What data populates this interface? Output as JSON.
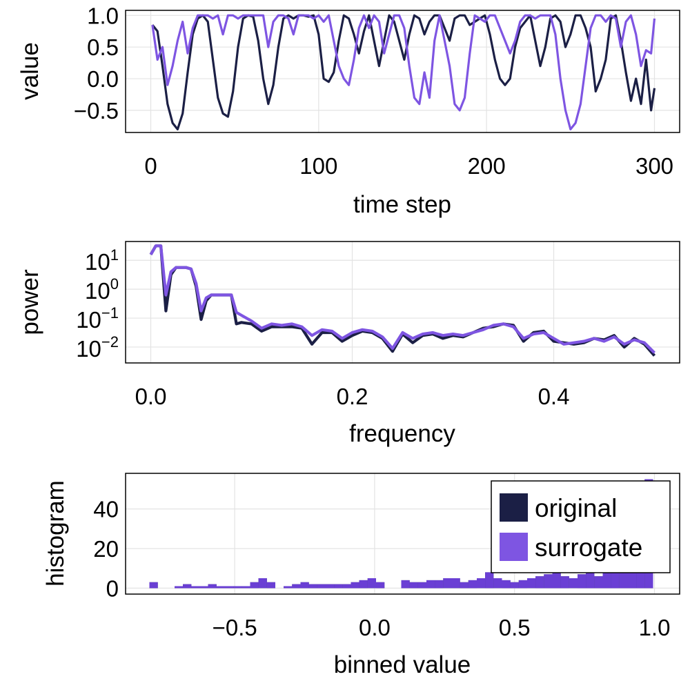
{
  "colors": {
    "original": "#1b1f45",
    "surrogate": "#7e55e2",
    "overlap": "#6a3fd4"
  },
  "legend": {
    "original": "original",
    "surrogate": "surrogate"
  },
  "chart_data": [
    {
      "type": "line",
      "name": "time-series",
      "xlabel": "time step",
      "ylabel": "value",
      "xlim": [
        -15,
        315
      ],
      "ylim": [
        -0.85,
        1.08
      ],
      "xticks": [
        0,
        100,
        200,
        300
      ],
      "xtick_labels": [
        "0",
        "100",
        "200",
        "300"
      ],
      "yticks": [
        -0.5,
        0.0,
        0.5,
        1.0
      ],
      "ytick_labels": [
        "−0.5",
        "0.0",
        "0.5",
        "1.0"
      ],
      "series": [
        {
          "name": "original",
          "x": [
            1,
            4,
            7,
            10,
            13,
            16,
            19,
            22,
            25,
            28,
            31,
            34,
            37,
            40,
            43,
            46,
            49,
            52,
            55,
            58,
            61,
            64,
            67,
            70,
            73,
            76,
            79,
            82,
            85,
            88,
            91,
            94,
            97,
            100,
            103,
            106,
            109,
            112,
            115,
            118,
            121,
            124,
            127,
            130,
            133,
            136,
            139,
            142,
            145,
            148,
            151,
            154,
            157,
            160,
            163,
            166,
            169,
            172,
            175,
            178,
            181,
            184,
            187,
            190,
            193,
            196,
            199,
            202,
            205,
            208,
            211,
            214,
            217,
            220,
            223,
            226,
            229,
            232,
            235,
            238,
            241,
            244,
            247,
            250,
            253,
            256,
            259,
            262,
            265,
            268,
            271,
            274,
            277,
            280,
            283,
            286,
            289,
            292,
            295,
            298,
            300
          ],
          "y": [
            0.85,
            0.75,
            0.2,
            -0.4,
            -0.7,
            -0.8,
            -0.55,
            0.1,
            0.7,
            0.95,
            1.0,
            0.9,
            0.3,
            -0.3,
            -0.55,
            -0.6,
            -0.2,
            0.5,
            0.95,
            1.0,
            0.98,
            0.6,
            0.0,
            -0.4,
            -0.1,
            0.5,
            0.95,
            1.0,
            0.95,
            1.0,
            1.0,
            0.98,
            1.0,
            0.7,
            0.0,
            -0.05,
            0.1,
            0.6,
            1.0,
            0.95,
            0.7,
            0.4,
            0.75,
            1.0,
            0.6,
            0.2,
            0.6,
            1.0,
            0.9,
            0.6,
            0.3,
            0.7,
            1.0,
            0.95,
            0.7,
            0.9,
            1.0,
            1.0,
            0.8,
            0.6,
            0.95,
            1.0,
            1.0,
            0.85,
            0.9,
            0.95,
            1.0,
            0.7,
            0.3,
            0.0,
            -0.1,
            0.0,
            0.5,
            0.8,
            0.9,
            1.0,
            0.6,
            0.2,
            0.5,
            0.95,
            1.0,
            0.9,
            0.5,
            0.7,
            1.0,
            1.0,
            0.8,
            0.5,
            -0.2,
            0.0,
            0.3,
            0.95,
            1.0,
            0.6,
            0.1,
            -0.35,
            0.0,
            -0.4,
            0.3,
            -0.5,
            -0.15
          ]
        },
        {
          "name": "surrogate",
          "x": [
            1,
            4,
            7,
            10,
            13,
            16,
            19,
            22,
            25,
            28,
            31,
            34,
            37,
            40,
            43,
            46,
            49,
            52,
            55,
            58,
            61,
            64,
            67,
            70,
            73,
            76,
            79,
            82,
            85,
            88,
            91,
            94,
            97,
            100,
            103,
            106,
            109,
            112,
            115,
            118,
            121,
            124,
            127,
            130,
            133,
            136,
            139,
            142,
            145,
            148,
            151,
            154,
            157,
            160,
            163,
            166,
            169,
            172,
            175,
            178,
            181,
            184,
            187,
            190,
            193,
            196,
            199,
            202,
            205,
            208,
            211,
            214,
            217,
            220,
            223,
            226,
            229,
            232,
            235,
            238,
            241,
            244,
            247,
            250,
            253,
            256,
            259,
            262,
            265,
            268,
            271,
            274,
            277,
            280,
            283,
            286,
            289,
            292,
            295,
            298,
            300
          ],
          "y": [
            0.85,
            0.3,
            0.5,
            -0.1,
            0.2,
            0.6,
            0.9,
            0.4,
            0.8,
            1.0,
            1.0,
            1.0,
            0.95,
            1.0,
            0.7,
            1.0,
            1.0,
            0.95,
            1.0,
            1.0,
            1.0,
            1.0,
            1.0,
            0.5,
            0.9,
            1.0,
            1.0,
            0.95,
            0.7,
            1.0,
            1.0,
            1.0,
            0.95,
            1.0,
            0.9,
            1.0,
            0.6,
            0.2,
            0.0,
            -0.1,
            0.3,
            0.8,
            1.0,
            0.8,
            1.0,
            0.9,
            0.4,
            0.7,
            1.0,
            1.0,
            0.8,
            0.2,
            -0.3,
            -0.4,
            0.1,
            -0.3,
            0.6,
            1.0,
            0.6,
            0.2,
            -0.4,
            -0.5,
            -0.3,
            0.4,
            1.0,
            0.95,
            0.9,
            1.0,
            1.0,
            0.8,
            0.6,
            0.4,
            0.6,
            0.9,
            1.0,
            1.0,
            0.95,
            1.0,
            1.0,
            1.0,
            0.7,
            0.0,
            -0.5,
            -0.8,
            -0.7,
            -0.4,
            0.2,
            0.8,
            1.0,
            1.0,
            0.9,
            1.0,
            0.95,
            0.5,
            0.9,
            1.0,
            0.7,
            0.2,
            0.45,
            0.4,
            0.95
          ]
        }
      ]
    },
    {
      "type": "line",
      "name": "power-spectrum",
      "xlabel": "frequency",
      "ylabel": "power",
      "yscale": "log10",
      "xlim": [
        -0.025,
        0.525
      ],
      "ylim_log10": [
        -2.55,
        1.65
      ],
      "xticks": [
        0.0,
        0.2,
        0.4
      ],
      "xtick_labels": [
        "0.0",
        "0.2",
        "0.4"
      ],
      "yticks_log10": [
        1,
        0,
        -1,
        -2
      ],
      "ytick_bases": [
        "10",
        "10",
        "10",
        "10"
      ],
      "ytick_exponents": [
        "1",
        "0",
        "−1",
        "−2"
      ],
      "series": [
        {
          "name": "original",
          "x": [
            0.0,
            0.005,
            0.01,
            0.015,
            0.02,
            0.025,
            0.03,
            0.035,
            0.04,
            0.045,
            0.05,
            0.055,
            0.06,
            0.065,
            0.07,
            0.075,
            0.08,
            0.085,
            0.09,
            0.1,
            0.11,
            0.12,
            0.13,
            0.14,
            0.15,
            0.16,
            0.17,
            0.18,
            0.19,
            0.2,
            0.21,
            0.22,
            0.23,
            0.24,
            0.25,
            0.26,
            0.27,
            0.28,
            0.29,
            0.3,
            0.31,
            0.32,
            0.33,
            0.34,
            0.35,
            0.36,
            0.37,
            0.38,
            0.39,
            0.4,
            0.41,
            0.42,
            0.43,
            0.44,
            0.45,
            0.46,
            0.47,
            0.48,
            0.49,
            0.5
          ],
          "y_log10": [
            1.2,
            1.5,
            1.5,
            -0.75,
            0.5,
            0.75,
            0.75,
            0.75,
            0.7,
            0.1,
            -1.05,
            -0.4,
            -0.2,
            -0.2,
            -0.2,
            -0.2,
            -0.2,
            -1.2,
            -1.15,
            -1.2,
            -1.45,
            -1.3,
            -1.3,
            -1.3,
            -1.35,
            -1.9,
            -1.5,
            -1.5,
            -1.8,
            -1.6,
            -1.45,
            -1.5,
            -1.7,
            -2.15,
            -1.55,
            -1.85,
            -1.6,
            -1.55,
            -1.7,
            -1.6,
            -1.65,
            -1.5,
            -1.35,
            -1.3,
            -1.2,
            -1.25,
            -1.8,
            -1.5,
            -1.45,
            -1.8,
            -1.85,
            -1.9,
            -1.85,
            -1.7,
            -1.75,
            -1.6,
            -2.0,
            -1.7,
            -1.9,
            -2.3
          ]
        },
        {
          "name": "surrogate",
          "x": [
            0.0,
            0.005,
            0.01,
            0.015,
            0.02,
            0.025,
            0.03,
            0.035,
            0.04,
            0.045,
            0.05,
            0.055,
            0.06,
            0.065,
            0.07,
            0.075,
            0.08,
            0.085,
            0.09,
            0.1,
            0.11,
            0.12,
            0.13,
            0.14,
            0.15,
            0.16,
            0.17,
            0.18,
            0.19,
            0.2,
            0.21,
            0.22,
            0.23,
            0.24,
            0.25,
            0.26,
            0.27,
            0.28,
            0.29,
            0.3,
            0.31,
            0.32,
            0.33,
            0.34,
            0.35,
            0.36,
            0.37,
            0.38,
            0.39,
            0.4,
            0.41,
            0.42,
            0.43,
            0.44,
            0.45,
            0.46,
            0.47,
            0.48,
            0.49,
            0.5
          ],
          "y_log10": [
            1.2,
            1.5,
            1.5,
            -0.2,
            0.6,
            0.75,
            0.75,
            0.75,
            0.7,
            0.2,
            -0.75,
            -0.3,
            -0.2,
            -0.2,
            -0.2,
            -0.2,
            -0.2,
            -0.8,
            -0.9,
            -1.1,
            -1.35,
            -1.2,
            -1.25,
            -1.2,
            -1.3,
            -1.6,
            -1.4,
            -1.45,
            -1.7,
            -1.5,
            -1.4,
            -1.45,
            -1.65,
            -2.05,
            -1.5,
            -1.7,
            -1.55,
            -1.5,
            -1.6,
            -1.55,
            -1.6,
            -1.5,
            -1.4,
            -1.25,
            -1.2,
            -1.3,
            -1.7,
            -1.55,
            -1.5,
            -1.7,
            -1.9,
            -1.85,
            -1.8,
            -1.7,
            -1.8,
            -1.65,
            -1.9,
            -1.75,
            -1.85,
            -2.2
          ]
        }
      ]
    },
    {
      "type": "bar",
      "name": "histogram",
      "xlabel": "binned value",
      "ylabel": "histogram",
      "xlim": [
        -0.89,
        1.09
      ],
      "ylim": [
        -3,
        58
      ],
      "xticks": [
        -0.5,
        0.0,
        0.5,
        1.0
      ],
      "xtick_labels": [
        "−0.5",
        "0.0",
        "0.5",
        "1.0"
      ],
      "yticks": [
        0,
        20,
        40
      ],
      "ytick_labels": [
        "0",
        "20",
        "40"
      ],
      "bin_width": 0.03,
      "bin_centers": [
        -0.79,
        -0.76,
        -0.73,
        -0.7,
        -0.67,
        -0.64,
        -0.61,
        -0.58,
        -0.55,
        -0.52,
        -0.49,
        -0.46,
        -0.43,
        -0.4,
        -0.37,
        -0.34,
        -0.31,
        -0.28,
        -0.25,
        -0.22,
        -0.19,
        -0.16,
        -0.13,
        -0.1,
        -0.07,
        -0.04,
        -0.01,
        0.02,
        0.05,
        0.08,
        0.11,
        0.14,
        0.17,
        0.2,
        0.23,
        0.26,
        0.29,
        0.32,
        0.35,
        0.38,
        0.41,
        0.44,
        0.47,
        0.5,
        0.53,
        0.56,
        0.59,
        0.62,
        0.65,
        0.68,
        0.71,
        0.74,
        0.77,
        0.8,
        0.83,
        0.86,
        0.89,
        0.92,
        0.95,
        0.98
      ],
      "series": [
        {
          "name": "original",
          "values": [
            3,
            0,
            0,
            1,
            2,
            1,
            1,
            2,
            1,
            1,
            1,
            1,
            3,
            5,
            3,
            0,
            1,
            2,
            3,
            2,
            2,
            2,
            2,
            2,
            3,
            4,
            5,
            3,
            0,
            0,
            4,
            3,
            3,
            4,
            4,
            5,
            5,
            3,
            4,
            5,
            8,
            5,
            4,
            3,
            4,
            5,
            6,
            7,
            9,
            6,
            5,
            7,
            8,
            6,
            9,
            8,
            10,
            12,
            15,
            55
          ]
        },
        {
          "name": "surrogate",
          "values": [
            3,
            0,
            0,
            1,
            2,
            1,
            1,
            2,
            1,
            1,
            1,
            1,
            3,
            5,
            3,
            0,
            1,
            2,
            3,
            2,
            2,
            2,
            2,
            2,
            3,
            4,
            5,
            3,
            0,
            0,
            4,
            3,
            3,
            4,
            4,
            5,
            5,
            3,
            4,
            5,
            8,
            5,
            4,
            3,
            4,
            5,
            6,
            7,
            9,
            6,
            5,
            7,
            8,
            6,
            9,
            8,
            10,
            12,
            15,
            55
          ]
        }
      ]
    }
  ]
}
